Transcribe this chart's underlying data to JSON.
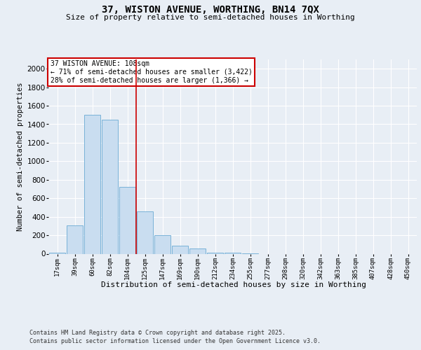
{
  "title1": "37, WISTON AVENUE, WORTHING, BN14 7QX",
  "title2": "Size of property relative to semi-detached houses in Worthing",
  "xlabel": "Distribution of semi-detached houses by size in Worthing",
  "ylabel": "Number of semi-detached properties",
  "footnote1": "Contains HM Land Registry data © Crown copyright and database right 2025.",
  "footnote2": "Contains public sector information licensed under the Open Government Licence v3.0.",
  "annotation_line1": "37 WISTON AVENUE: 108sqm",
  "annotation_line2": "← 71% of semi-detached houses are smaller (3,422)",
  "annotation_line3": "28% of semi-detached houses are larger (1,366) →",
  "bar_labels": [
    "17sqm",
    "39sqm",
    "60sqm",
    "82sqm",
    "104sqm",
    "125sqm",
    "147sqm",
    "169sqm",
    "190sqm",
    "212sqm",
    "234sqm",
    "255sqm",
    "277sqm",
    "298sqm",
    "320sqm",
    "342sqm",
    "363sqm",
    "385sqm",
    "407sqm",
    "428sqm",
    "450sqm"
  ],
  "bar_values": [
    10,
    310,
    1500,
    1450,
    720,
    460,
    200,
    90,
    60,
    15,
    10,
    5,
    0,
    0,
    0,
    0,
    0,
    0,
    0,
    0,
    0
  ],
  "bar_color": "#c9ddf0",
  "bar_edge_color": "#6aaad4",
  "red_line_x": 4.5,
  "ylim": [
    0,
    2100
  ],
  "yticks": [
    0,
    200,
    400,
    600,
    800,
    1000,
    1200,
    1400,
    1600,
    1800,
    2000
  ],
  "background_color": "#e8eef5",
  "plot_bg_color": "#e8eef5",
  "annotation_box_color": "#ffffff",
  "annotation_box_edge": "#cc0000",
  "red_line_color": "#cc0000",
  "grid_color": "#ffffff"
}
